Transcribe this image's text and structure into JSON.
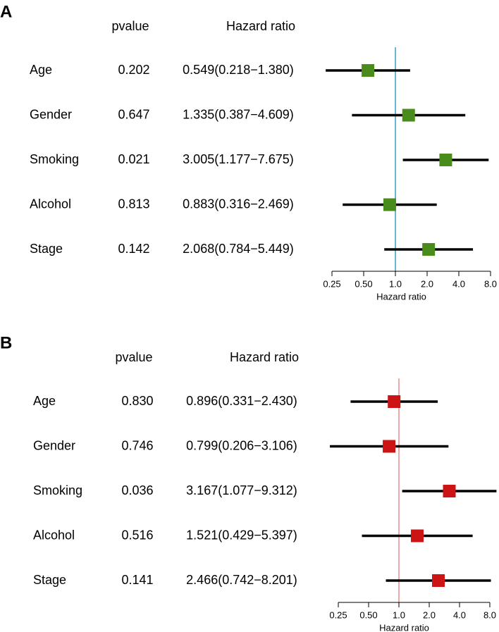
{
  "chart_data": [
    {
      "type": "forest",
      "panel": "A",
      "headers": [
        "pvalue",
        "Hazard ratio"
      ],
      "categories": [
        "Age",
        "Gender",
        "Smoking",
        "Alcohol",
        "Stage"
      ],
      "pvalues": [
        "0.202",
        "0.647",
        "0.021",
        "0.813",
        "0.142"
      ],
      "values": [
        0.549,
        1.335,
        3.005,
        0.883,
        2.068
      ],
      "lower": [
        0.218,
        0.387,
        1.177,
        0.316,
        0.784
      ],
      "upper": [
        1.38,
        4.609,
        7.675,
        2.469,
        5.449
      ],
      "value_labels": [
        "0.549(0.218−1.380)",
        "1.335(0.387−4.609)",
        "3.005(1.177−7.675)",
        "0.883(0.316−2.469)",
        "2.068(0.784−5.449)"
      ],
      "xlabel": "Hazard ratio",
      "xscale": "log",
      "xlim": [
        0.25,
        8
      ],
      "xticks": [
        0.25,
        {
          "value": 0.5,
          "label": "0.50"
        },
        {
          "value": 1,
          "label": "1.0"
        },
        {
          "value": 2,
          "label": "2.0"
        },
        {
          "value": 4,
          "label": "4.0"
        },
        {
          "value": 8,
          "label": "8.0"
        }
      ],
      "reference": 1,
      "reference_color": "#6bb7d8",
      "color": "#4a8c1c"
    },
    {
      "type": "forest",
      "panel": "B",
      "headers": [
        "pvalue",
        "Hazard ratio"
      ],
      "categories": [
        "Age",
        "Gender",
        "Smoking",
        "Alcohol",
        "Stage"
      ],
      "pvalues": [
        "0.830",
        "0.746",
        "0.036",
        "0.516",
        "0.141"
      ],
      "values": [
        0.896,
        0.799,
        3.167,
        1.521,
        2.466
      ],
      "lower": [
        0.331,
        0.206,
        1.077,
        0.429,
        0.742
      ],
      "upper": [
        2.43,
        3.106,
        9.312,
        5.397,
        8.201
      ],
      "value_labels": [
        "0.896(0.331−2.430)",
        "0.799(0.206−3.106)",
        "3.167(1.077−9.312)",
        "1.521(0.429−5.397)",
        "2.466(0.742−8.201)"
      ],
      "xlabel": "Hazard ratio",
      "xscale": "log",
      "xlim": [
        0.25,
        8
      ],
      "xticks": [
        0.25,
        {
          "value": 0.5,
          "label": "0.50"
        },
        {
          "value": 1,
          "label": "1.0"
        },
        {
          "value": 2,
          "label": "2.0"
        },
        {
          "value": 4,
          "label": "4.0"
        },
        {
          "value": 8,
          "label": "8.0"
        }
      ],
      "reference": 1,
      "reference_color": "#f0a8a8",
      "color": "#cc1414"
    }
  ]
}
